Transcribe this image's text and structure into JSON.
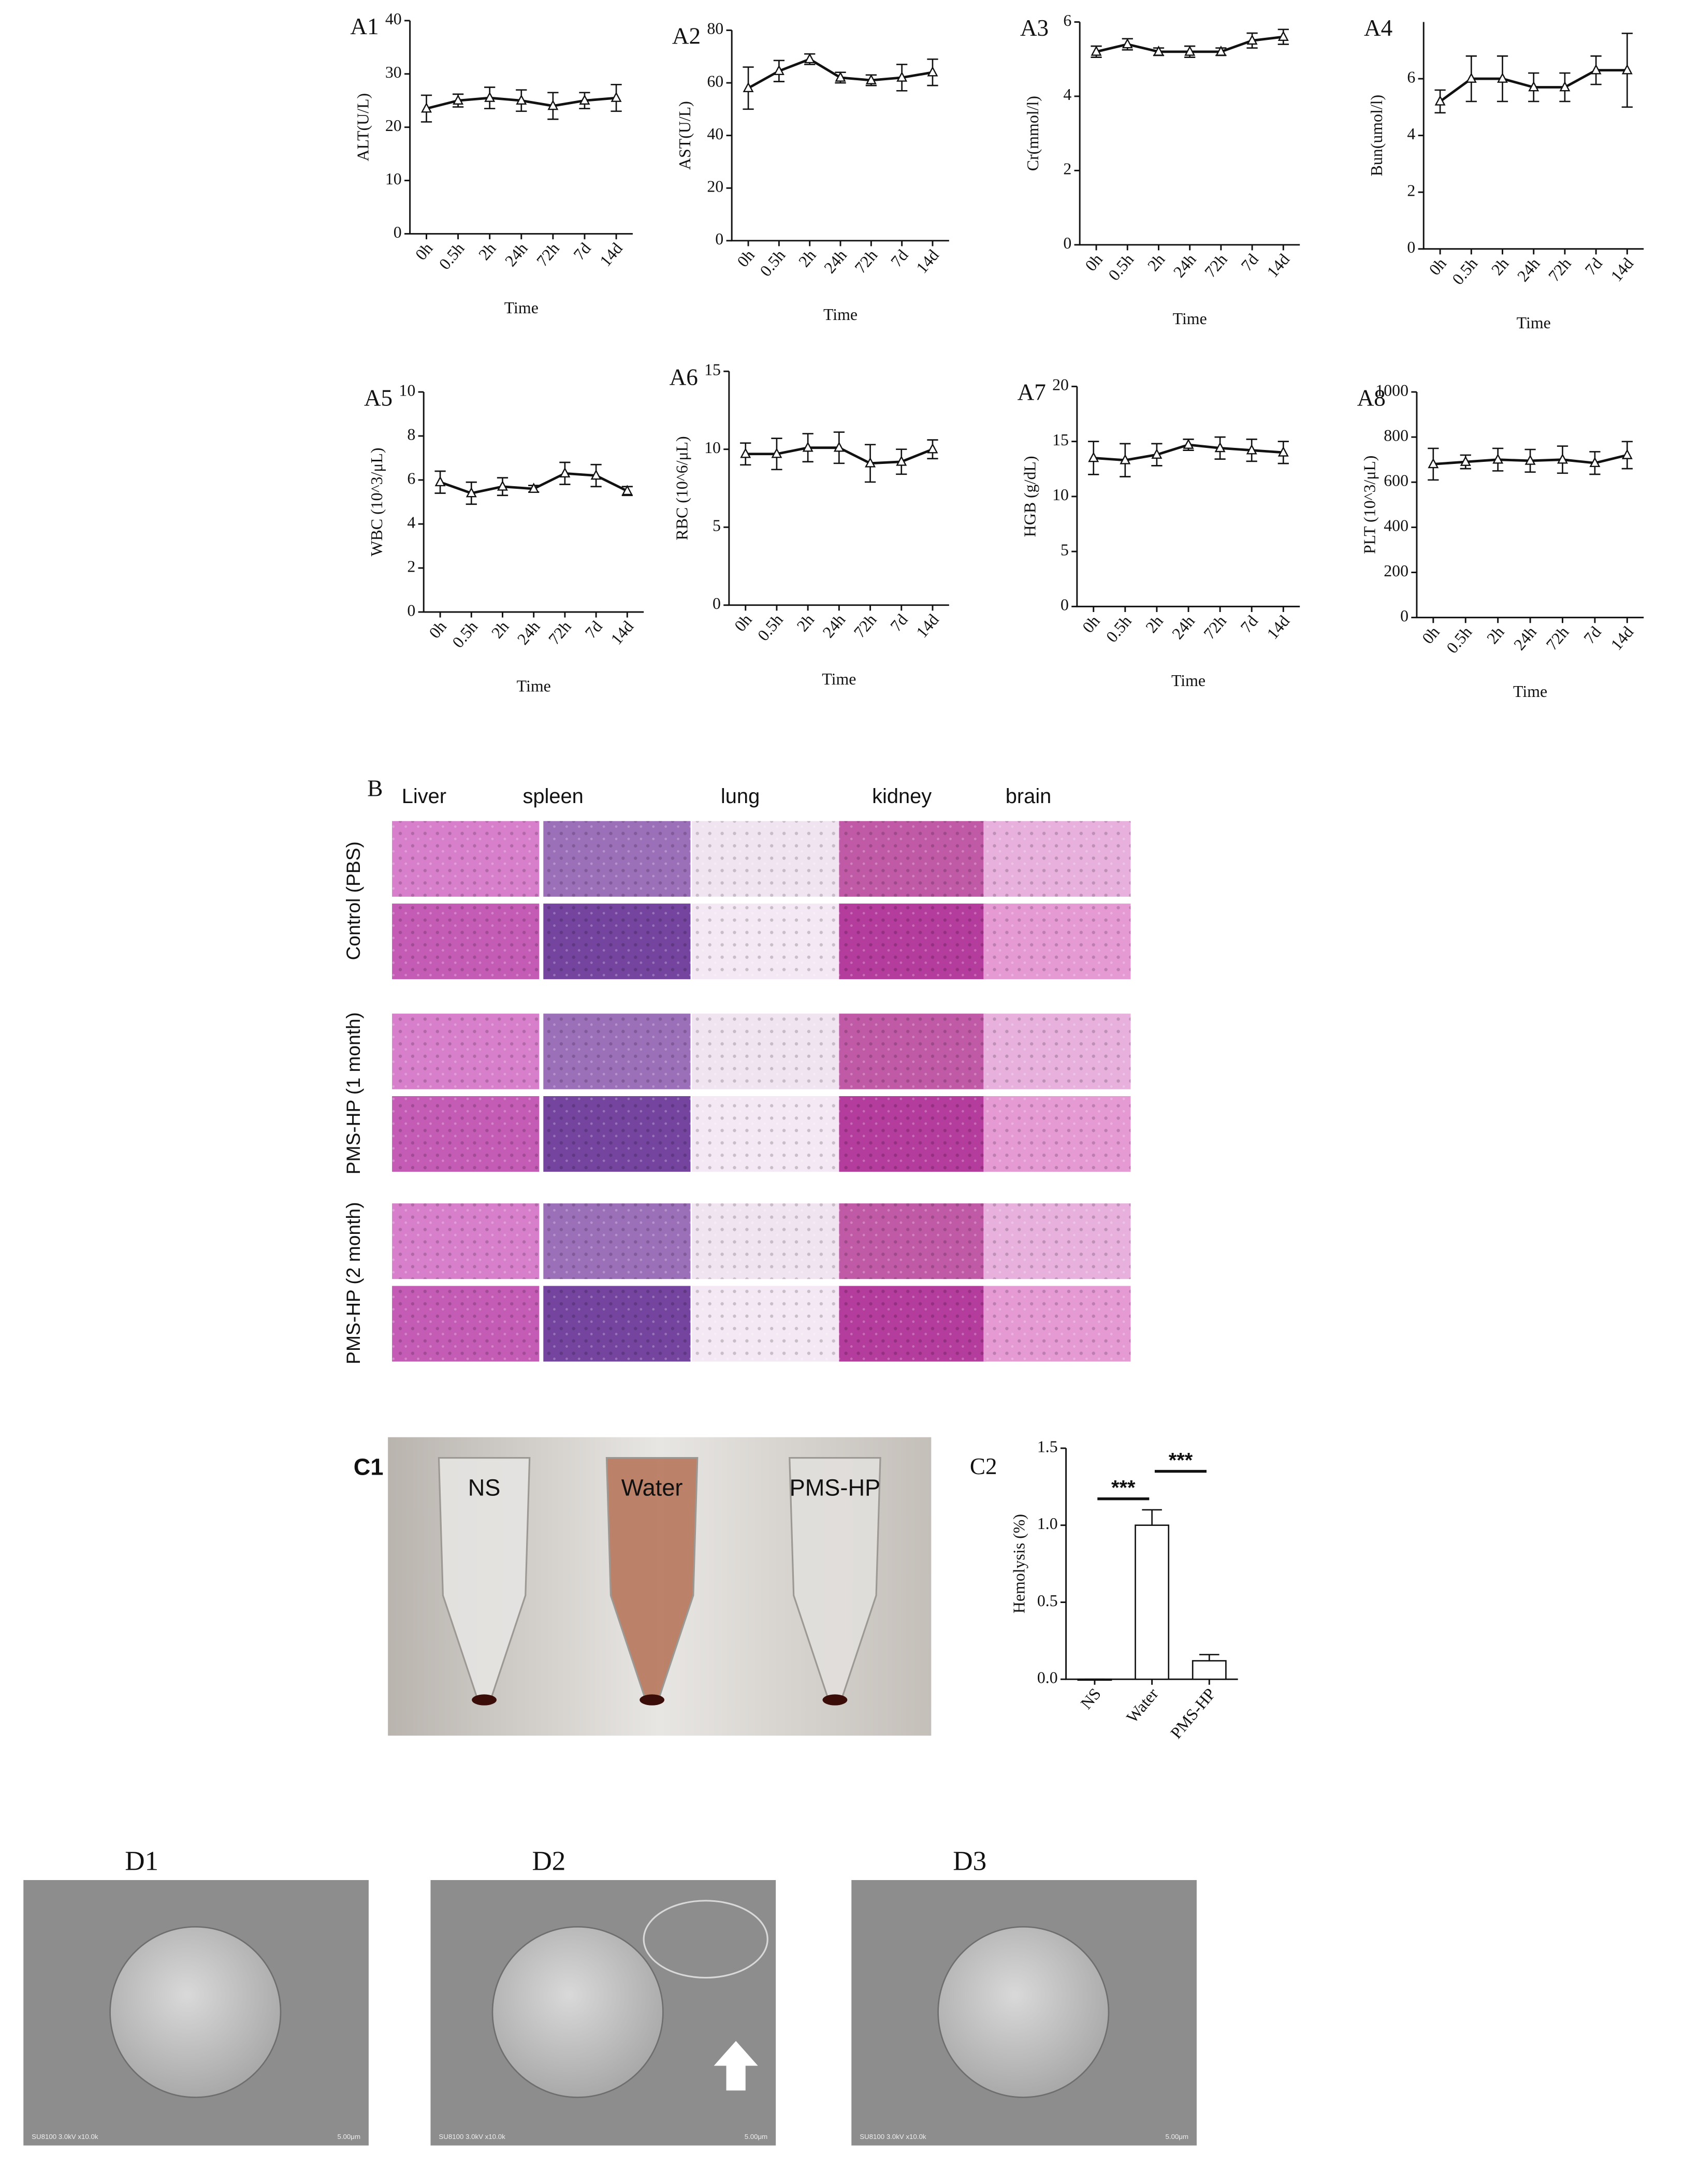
{
  "chart_data": [
    {
      "type": "line",
      "panel": "A1",
      "y_label": "ALT(U/L)",
      "x_label": "Time",
      "categories": [
        "0h",
        "0.5h",
        "2h",
        "24h",
        "72h",
        "7d",
        "14d"
      ],
      "values": [
        23.5,
        25,
        25.5,
        25,
        24,
        25,
        25.5
      ],
      "errors": [
        2.5,
        1.2,
        2,
        2,
        2.5,
        1.5,
        2.5
      ],
      "ylim": [
        0,
        40
      ],
      "yticks": [
        0,
        10,
        20,
        30,
        40
      ],
      "color": "#111111"
    },
    {
      "type": "line",
      "panel": "A2",
      "y_label": "AST(U/L)",
      "x_label": "Time",
      "categories": [
        "0h",
        "0.5h",
        "2h",
        "24h",
        "72h",
        "7d",
        "14d"
      ],
      "values": [
        58,
        64.5,
        69,
        62,
        61,
        62,
        64
      ],
      "errors": [
        8,
        4,
        2,
        2,
        2,
        5,
        5
      ],
      "ylim": [
        0,
        80
      ],
      "yticks": [
        0,
        20,
        40,
        60,
        80
      ],
      "color": "#111111"
    },
    {
      "type": "line",
      "panel": "A3",
      "y_label": "Cr(mmol/l)",
      "x_label": "Time",
      "categories": [
        "0h",
        "0.5h",
        "2h",
        "24h",
        "72h",
        "7d",
        "14d"
      ],
      "values": [
        5.2,
        5.4,
        5.2,
        5.2,
        5.2,
        5.5,
        5.6
      ],
      "errors": [
        0.15,
        0.15,
        0.1,
        0.15,
        0.1,
        0.2,
        0.2
      ],
      "ylim": [
        0,
        6
      ],
      "yticks": [
        0,
        2,
        4,
        6
      ],
      "color": "#111111"
    },
    {
      "type": "line",
      "panel": "A4",
      "y_label": "Bun(umol/l)",
      "x_label": "Time",
      "categories": [
        "0h",
        "0.5h",
        "2h",
        "24h",
        "72h",
        "7d",
        "14d"
      ],
      "values": [
        5.2,
        6,
        6,
        5.7,
        5.7,
        6.3,
        6.3
      ],
      "errors": [
        0.4,
        0.8,
        0.8,
        0.5,
        0.5,
        0.5,
        1.3
      ],
      "ylim": [
        0,
        8
      ],
      "yticks": [
        0,
        2,
        4,
        6
      ],
      "color": "#111111"
    },
    {
      "type": "line",
      "panel": "A5",
      "y_label": "WBC (10^3/μL)",
      "x_label": "Time",
      "categories": [
        "0h",
        "0.5h",
        "2h",
        "24h",
        "72h",
        "7d",
        "14d"
      ],
      "values": [
        5.9,
        5.4,
        5.7,
        5.6,
        6.3,
        6.2,
        5.5
      ],
      "errors": [
        0.5,
        0.5,
        0.4,
        0.15,
        0.5,
        0.5,
        0.2
      ],
      "ylim": [
        0,
        10
      ],
      "yticks": [
        0,
        2,
        4,
        6,
        8,
        10
      ],
      "color": "#111111"
    },
    {
      "type": "line",
      "panel": "A6",
      "y_label": "RBC (10^6/μL)",
      "x_label": "Time",
      "categories": [
        "0h",
        "0.5h",
        "2h",
        "24h",
        "72h",
        "7d",
        "14d"
      ],
      "values": [
        9.7,
        9.7,
        10.1,
        10.1,
        9.1,
        9.2,
        10
      ],
      "errors": [
        0.7,
        1,
        0.9,
        1,
        1.2,
        0.8,
        0.6
      ],
      "ylim": [
        0,
        15
      ],
      "yticks": [
        0,
        5,
        10,
        15
      ],
      "color": "#111111"
    },
    {
      "type": "line",
      "panel": "A7",
      "y_label": "HGB (g/dL)",
      "x_label": "Time",
      "categories": [
        "0h",
        "0.5h",
        "2h",
        "24h",
        "72h",
        "7d",
        "14d"
      ],
      "values": [
        13.5,
        13.3,
        13.8,
        14.7,
        14.4,
        14.2,
        14
      ],
      "errors": [
        1.5,
        1.5,
        1,
        0.5,
        1,
        1,
        1
      ],
      "ylim": [
        0,
        20
      ],
      "yticks": [
        0,
        5,
        10,
        15,
        20
      ],
      "color": "#111111"
    },
    {
      "type": "line",
      "panel": "A8",
      "y_label": "PLT (10^3/μL)",
      "x_label": "Time",
      "categories": [
        "0h",
        "0.5h",
        "2h",
        "24h",
        "72h",
        "7d",
        "14d"
      ],
      "values": [
        680,
        690,
        700,
        695,
        700,
        685,
        720
      ],
      "errors": [
        70,
        30,
        50,
        50,
        60,
        50,
        60
      ],
      "ylim": [
        0,
        1000
      ],
      "yticks": [
        0,
        200,
        400,
        600,
        800,
        1000
      ],
      "color": "#111111"
    },
    {
      "type": "bar",
      "panel": "C2",
      "y_label": "Hemolysis (%)",
      "categories": [
        "NS",
        "Water",
        "PMS-HP"
      ],
      "values": [
        0,
        1.0,
        0.12
      ],
      "errors": [
        0,
        0.1,
        0.04
      ],
      "ylim": [
        0,
        1.5
      ],
      "yticks": [
        {
          "value": 0,
          "label": "0.0"
        },
        {
          "value": 0.5,
          "label": "0.5"
        },
        {
          "value": 1,
          "label": "1.0"
        },
        {
          "value": 1.5,
          "label": "1.5"
        }
      ],
      "color": "#ffffff",
      "comparisons": [
        {
          "pair": [
            0,
            1
          ],
          "label": "***"
        },
        {
          "pair": [
            1,
            2
          ],
          "label": "***"
        }
      ]
    }
  ],
  "histology": {
    "label": "B",
    "columns": [
      "Liver",
      "spleen",
      "lung",
      "kidney",
      "brain"
    ],
    "rows": [
      "Control (PBS)",
      "PMS-HP (1 month)",
      "PMS-HP (2 month)"
    ]
  },
  "photo": {
    "label": "C1",
    "tubes": [
      "NS",
      "Water",
      "PMS-HP"
    ]
  },
  "sem": {
    "panels": [
      {
        "label": "D1",
        "caption": "SU8100 3.0kV x10.0k",
        "scale": "5.00μm"
      },
      {
        "label": "D2",
        "caption": "SU8100 3.0kV x10.0k",
        "scale": "5.00μm"
      },
      {
        "label": "D3",
        "caption": "SU8100 3.0kV x10.0k",
        "scale": "5.00μm"
      }
    ]
  }
}
